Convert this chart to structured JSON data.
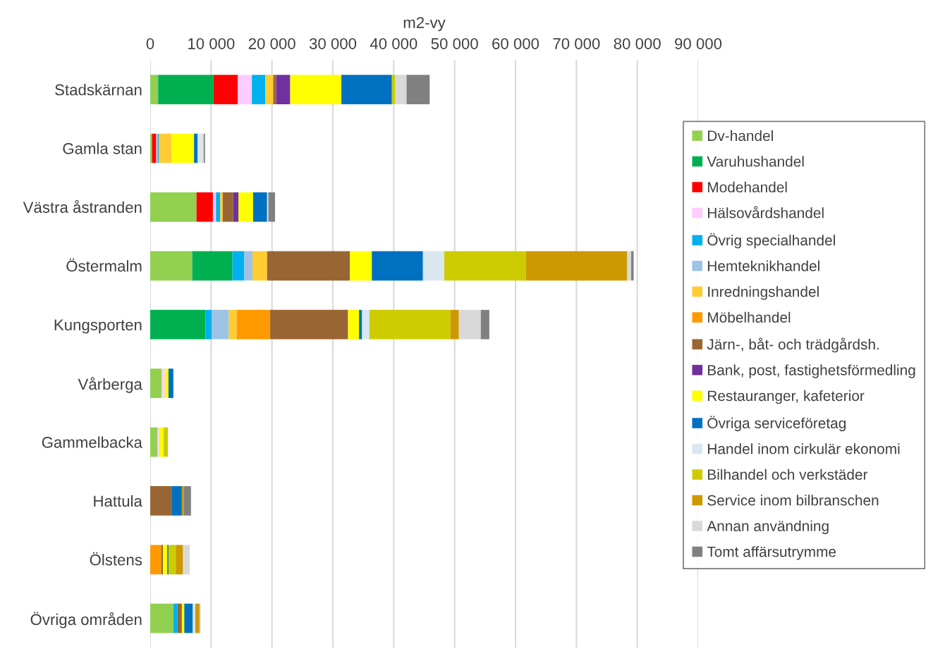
{
  "chart_data": {
    "type": "bar",
    "orientation": "horizontal",
    "stacked": true,
    "xlabel": "m2-vy",
    "categories": [
      "Stadskärnan",
      "Gamla stan",
      "Västra åstranden",
      "Östermalm",
      "Kungsporten",
      "Vårberga",
      "Gammelbacka",
      "Hattula",
      "Ölstens",
      "Övriga områden"
    ],
    "xlim": [
      0,
      90000
    ],
    "xticks": [
      0,
      {
        "value": 10000,
        "label": "10 000"
      },
      {
        "value": 20000,
        "label": "20 000"
      },
      {
        "value": 30000,
        "label": "30 000"
      },
      {
        "value": 40000,
        "label": "40 000"
      },
      {
        "value": 50000,
        "label": "50 000"
      },
      {
        "value": 60000,
        "label": "60 000"
      },
      {
        "value": 70000,
        "label": "70 000"
      },
      {
        "value": 80000,
        "label": "80 000"
      },
      {
        "value": 90000,
        "label": "90 000"
      }
    ],
    "grid": "x",
    "legend": "right",
    "series": [
      {
        "name": "Dv-handel",
        "color": "#92d050",
        "values": [
          1300,
          300,
          7600,
          6900,
          null,
          1900,
          1200,
          null,
          null,
          3800
        ]
      },
      {
        "name": "Varuhushandel",
        "color": "#00b050",
        "values": [
          9100,
          null,
          null,
          6600,
          9100,
          null,
          null,
          null,
          null,
          null
        ]
      },
      {
        "name": "Modehandel",
        "color": "#ff0000",
        "values": [
          4000,
          700,
          2700,
          null,
          null,
          null,
          null,
          null,
          null,
          null
        ]
      },
      {
        "name": "Hälsovårdshandel",
        "color": "#ffccff",
        "values": [
          2300,
          200,
          500,
          null,
          null,
          500,
          300,
          null,
          null,
          null
        ]
      },
      {
        "name": "Övrig specialhandel",
        "color": "#00b0f0",
        "values": [
          2200,
          200,
          700,
          1900,
          1000,
          null,
          null,
          null,
          null,
          700
        ]
      },
      {
        "name": "Hemteknikhandel",
        "color": "#9dc3e6",
        "values": [
          null,
          null,
          null,
          1400,
          2800,
          null,
          null,
          null,
          null,
          null
        ]
      },
      {
        "name": "Inredningshandel",
        "color": "#ffcc33",
        "values": [
          1300,
          2100,
          400,
          2400,
          1300,
          null,
          null,
          null,
          null,
          null
        ]
      },
      {
        "name": "Möbelhandel",
        "color": "#ff9900",
        "values": [
          null,
          null,
          null,
          null,
          5500,
          null,
          null,
          null,
          1800,
          null
        ]
      },
      {
        "name": "Järn-, båt- och trädgårdsh.",
        "color": "#996633",
        "values": [
          500,
          null,
          1700,
          13600,
          12800,
          null,
          null,
          3500,
          300,
          700
        ]
      },
      {
        "name": "Bank, post, fastighetsförmedling",
        "color": "#7030a0",
        "values": [
          2300,
          null,
          900,
          null,
          null,
          null,
          null,
          null,
          null,
          null
        ]
      },
      {
        "name": "Restauranger, kafeterior",
        "color": "#ffff00",
        "values": [
          8400,
          3700,
          2400,
          3600,
          1800,
          600,
          700,
          null,
          700,
          400
        ]
      },
      {
        "name": "Övriga serviceföretag",
        "color": "#0070c0",
        "values": [
          8300,
          600,
          2300,
          8400,
          500,
          800,
          null,
          1700,
          200,
          1400
        ]
      },
      {
        "name": "Handel inom cirkulär ekonomi",
        "color": "#dae7f1",
        "values": [
          null,
          700,
          200,
          3500,
          1200,
          null,
          null,
          null,
          null,
          400
        ]
      },
      {
        "name": "Bilhandel och verkstäder",
        "color": "#cccc00",
        "values": [
          500,
          null,
          null,
          13400,
          13300,
          null,
          700,
          null,
          1200,
          null
        ]
      },
      {
        "name": "Service inom bilbranschen",
        "color": "#cc9900",
        "values": [
          null,
          null,
          null,
          16600,
          1400,
          null,
          null,
          300,
          1200,
          700
        ]
      },
      {
        "name": "Annan användning",
        "color": "#d9d9d9",
        "values": [
          1900,
          300,
          null,
          700,
          3600,
          null,
          null,
          null,
          1100,
          200
        ]
      },
      {
        "name": "Tomt affärsutrymme",
        "color": "#808080",
        "values": [
          3800,
          200,
          1100,
          400,
          1400,
          null,
          null,
          1200,
          null,
          null
        ]
      }
    ]
  }
}
